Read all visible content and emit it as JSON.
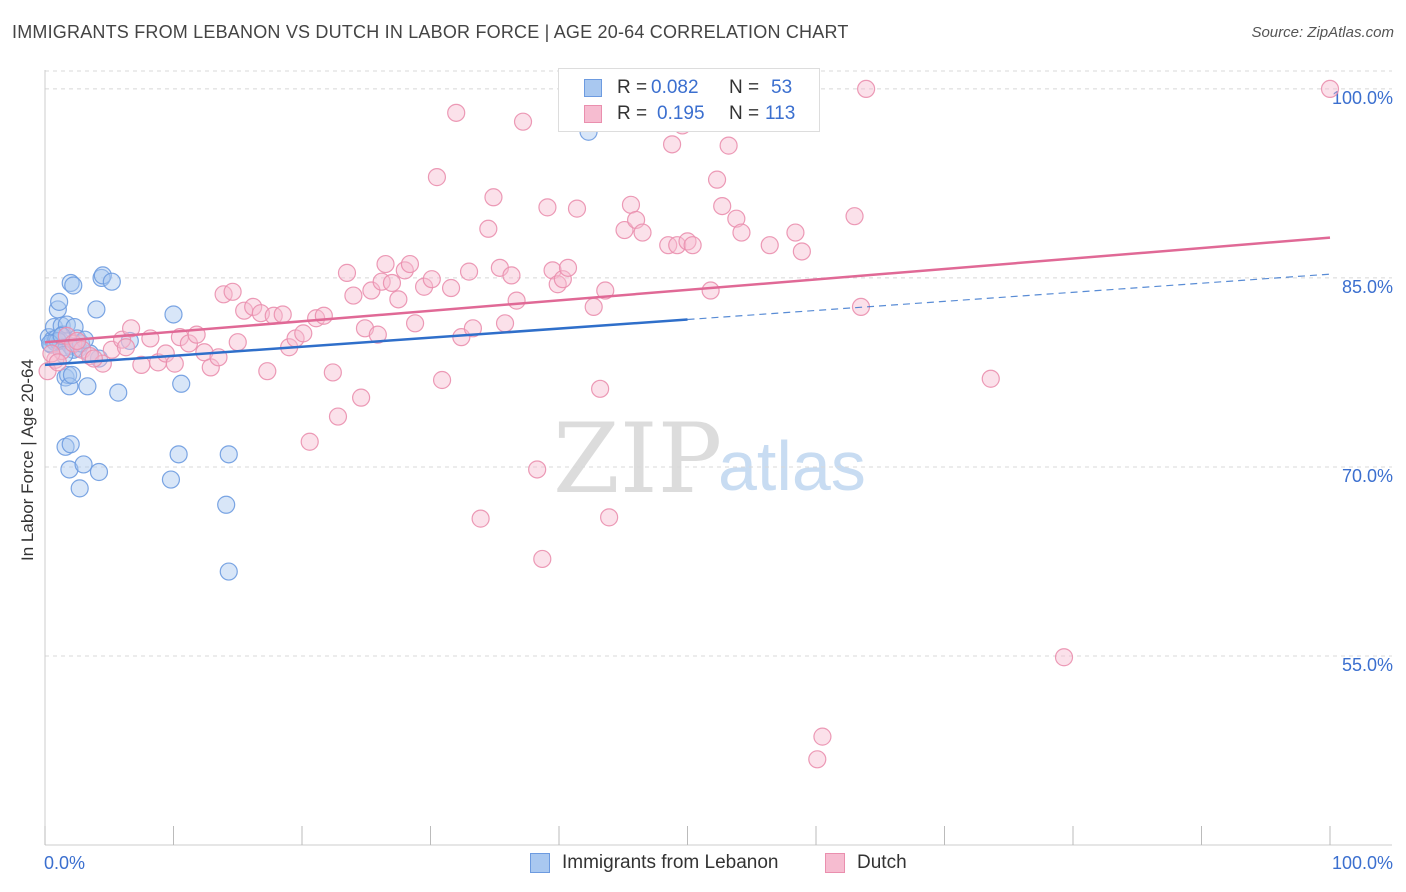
{
  "title": "IMMIGRANTS FROM LEBANON VS DUTCH IN LABOR FORCE | AGE 20-64 CORRELATION CHART",
  "source": "Source: ZipAtlas.com",
  "watermark": {
    "zip": "ZIP",
    "atlas": "atlas"
  },
  "colors": {
    "blue_fill": "#a9c8f0",
    "blue_stroke": "#6d9be0",
    "blue_line": "#2f6fca",
    "pink_fill": "#f6bcd0",
    "pink_stroke": "#ea8fae",
    "pink_line": "#e06996",
    "axis_label": "#3b6fcf",
    "grid": "#d8d8d8"
  },
  "legend": {
    "rows": [
      {
        "r_label": "R =",
        "r_value": "0.082",
        "n_label": "N =",
        "n_value": "53",
        "series": "blue"
      },
      {
        "r_label": "R =",
        "r_value": "0.195",
        "n_label": "N =",
        "n_value": "113",
        "series": "pink"
      }
    ]
  },
  "chart_data": {
    "type": "scatter",
    "title": "IMMIGRANTS FROM LEBANON VS DUTCH IN LABOR FORCE | AGE 20-64 CORRELATION CHART",
    "xlabel": "",
    "ylabel": "In Labor Force | Age 20-64",
    "xlim": [
      0,
      100
    ],
    "ylim": [
      40,
      101.5
    ],
    "x_tick_labels": [
      "0.0%",
      "100.0%"
    ],
    "y_ticks": [
      55,
      70,
      85,
      100
    ],
    "y_tick_labels": [
      "55.0%",
      "70.0%",
      "85.0%",
      "100.0%"
    ],
    "grid": true,
    "legend_position": "top-center",
    "series": [
      {
        "name": "Immigrants from Lebanon",
        "color": "blue",
        "trend": {
          "x": [
            0,
            50
          ],
          "y": [
            78.1,
            81.7
          ],
          "dashed_to": [
            100,
            85.3
          ]
        },
        "points": [
          [
            0.3,
            80.3
          ],
          [
            0.5,
            79.7
          ],
          [
            0.6,
            80.1
          ],
          [
            0.7,
            81.1
          ],
          [
            0.8,
            79.9
          ],
          [
            0.9,
            80.2
          ],
          [
            1.0,
            82.5
          ],
          [
            1.1,
            83.1
          ],
          [
            1.2,
            80.0
          ],
          [
            1.3,
            81.2
          ],
          [
            1.4,
            80.5
          ],
          [
            1.5,
            79.5
          ],
          [
            1.6,
            77.1
          ],
          [
            1.7,
            81.3
          ],
          [
            1.8,
            77.3
          ],
          [
            1.9,
            76.4
          ],
          [
            2.0,
            84.6
          ],
          [
            2.1,
            77.3
          ],
          [
            2.2,
            84.4
          ],
          [
            2.3,
            81.1
          ],
          [
            2.5,
            80.2
          ],
          [
            2.6,
            79.4
          ],
          [
            3.3,
            76.4
          ],
          [
            4.0,
            82.5
          ],
          [
            4.2,
            78.6
          ],
          [
            4.4,
            85.0
          ],
          [
            4.5,
            85.2
          ],
          [
            5.2,
            84.7
          ],
          [
            5.7,
            75.9
          ],
          [
            6.6,
            80.0
          ],
          [
            10.0,
            82.1
          ],
          [
            10.6,
            76.6
          ],
          [
            1.6,
            71.6
          ],
          [
            2.0,
            71.8
          ],
          [
            1.9,
            69.8
          ],
          [
            2.7,
            68.3
          ],
          [
            3.0,
            70.2
          ],
          [
            4.2,
            69.6
          ],
          [
            9.8,
            69.0
          ],
          [
            10.4,
            71.0
          ],
          [
            14.3,
            71.0
          ],
          [
            14.1,
            67.0
          ],
          [
            14.3,
            61.7
          ],
          [
            42.3,
            96.6
          ],
          [
            2.0,
            79.6
          ],
          [
            3.5,
            79.0
          ],
          [
            1.0,
            80.0
          ],
          [
            2.2,
            79.3
          ],
          [
            0.4,
            79.8
          ],
          [
            1.3,
            80.4
          ],
          [
            2.8,
            79.8
          ],
          [
            1.5,
            78.9
          ],
          [
            3.1,
            80.1
          ]
        ]
      },
      {
        "name": "Dutch",
        "color": "pink",
        "trend": {
          "x": [
            0,
            100
          ],
          "y": [
            79.9,
            88.2
          ]
        },
        "points": [
          [
            0.2,
            77.6
          ],
          [
            0.8,
            78.5
          ],
          [
            1.3,
            79.2
          ],
          [
            1.7,
            80.4
          ],
          [
            2.2,
            79.8
          ],
          [
            2.9,
            79.3
          ],
          [
            3.5,
            78.8
          ],
          [
            4.5,
            78.2
          ],
          [
            5.2,
            79.3
          ],
          [
            6.0,
            80.1
          ],
          [
            6.7,
            81.0
          ],
          [
            7.5,
            78.1
          ],
          [
            8.2,
            80.2
          ],
          [
            8.8,
            78.3
          ],
          [
            9.4,
            79.0
          ],
          [
            10.1,
            78.2
          ],
          [
            10.5,
            80.3
          ],
          [
            11.2,
            79.8
          ],
          [
            11.8,
            80.5
          ],
          [
            12.4,
            79.1
          ],
          [
            12.9,
            77.9
          ],
          [
            13.5,
            78.7
          ],
          [
            13.9,
            83.7
          ],
          [
            14.6,
            83.9
          ],
          [
            15.0,
            79.9
          ],
          [
            15.5,
            82.4
          ],
          [
            16.2,
            82.7
          ],
          [
            16.8,
            82.2
          ],
          [
            17.3,
            77.6
          ],
          [
            17.8,
            82.0
          ],
          [
            18.5,
            82.1
          ],
          [
            19.0,
            79.5
          ],
          [
            19.5,
            80.2
          ],
          [
            20.1,
            80.6
          ],
          [
            20.6,
            72.0
          ],
          [
            21.1,
            81.8
          ],
          [
            21.7,
            82.0
          ],
          [
            22.4,
            77.5
          ],
          [
            22.8,
            74.0
          ],
          [
            23.5,
            85.4
          ],
          [
            24.0,
            83.6
          ],
          [
            24.6,
            75.5
          ],
          [
            24.9,
            81.0
          ],
          [
            25.4,
            84.0
          ],
          [
            25.9,
            80.5
          ],
          [
            26.2,
            84.7
          ],
          [
            26.5,
            86.1
          ],
          [
            27.0,
            84.6
          ],
          [
            27.5,
            83.3
          ],
          [
            28.0,
            85.6
          ],
          [
            28.4,
            86.1
          ],
          [
            28.8,
            81.4
          ],
          [
            29.5,
            84.3
          ],
          [
            30.1,
            84.9
          ],
          [
            30.5,
            93.0
          ],
          [
            30.9,
            76.9
          ],
          [
            31.6,
            84.2
          ],
          [
            32.0,
            98.1
          ],
          [
            32.4,
            80.3
          ],
          [
            33.0,
            85.5
          ],
          [
            33.3,
            81.0
          ],
          [
            33.9,
            65.9
          ],
          [
            34.5,
            88.9
          ],
          [
            34.9,
            91.4
          ],
          [
            35.4,
            85.8
          ],
          [
            35.8,
            81.4
          ],
          [
            36.3,
            85.2
          ],
          [
            36.7,
            83.2
          ],
          [
            37.2,
            97.4
          ],
          [
            38.3,
            69.8
          ],
          [
            38.7,
            62.7
          ],
          [
            39.1,
            90.6
          ],
          [
            39.5,
            85.6
          ],
          [
            39.9,
            84.5
          ],
          [
            40.3,
            84.9
          ],
          [
            40.7,
            85.8
          ],
          [
            41.4,
            90.5
          ],
          [
            42.7,
            82.7
          ],
          [
            43.2,
            76.2
          ],
          [
            43.6,
            84.0
          ],
          [
            43.9,
            66.0
          ],
          [
            45.1,
            88.8
          ],
          [
            45.6,
            90.8
          ],
          [
            46.0,
            89.6
          ],
          [
            46.5,
            88.6
          ],
          [
            48.5,
            87.6
          ],
          [
            48.8,
            95.6
          ],
          [
            49.2,
            87.6
          ],
          [
            49.6,
            97.1
          ],
          [
            50.0,
            87.9
          ],
          [
            50.4,
            87.6
          ],
          [
            51.8,
            84.0
          ],
          [
            52.3,
            92.8
          ],
          [
            52.7,
            90.7
          ],
          [
            53.2,
            95.5
          ],
          [
            53.8,
            89.7
          ],
          [
            54.2,
            88.6
          ],
          [
            56.4,
            87.6
          ],
          [
            58.4,
            88.6
          ],
          [
            58.9,
            87.1
          ],
          [
            60.5,
            48.6
          ],
          [
            60.1,
            46.8
          ],
          [
            63.0,
            89.9
          ],
          [
            63.5,
            82.7
          ],
          [
            63.9,
            100.0
          ],
          [
            73.6,
            77.0
          ],
          [
            79.3,
            54.9
          ],
          [
            100.0,
            100.0
          ],
          [
            0.5,
            79.0
          ],
          [
            1.0,
            78.3
          ],
          [
            2.5,
            80.0
          ],
          [
            3.8,
            78.6
          ],
          [
            6.3,
            79.5
          ]
        ]
      }
    ]
  },
  "bottom_legend": [
    {
      "label": "Immigrants from Lebanon",
      "color": "blue"
    },
    {
      "label": "Dutch",
      "color": "pink"
    }
  ]
}
